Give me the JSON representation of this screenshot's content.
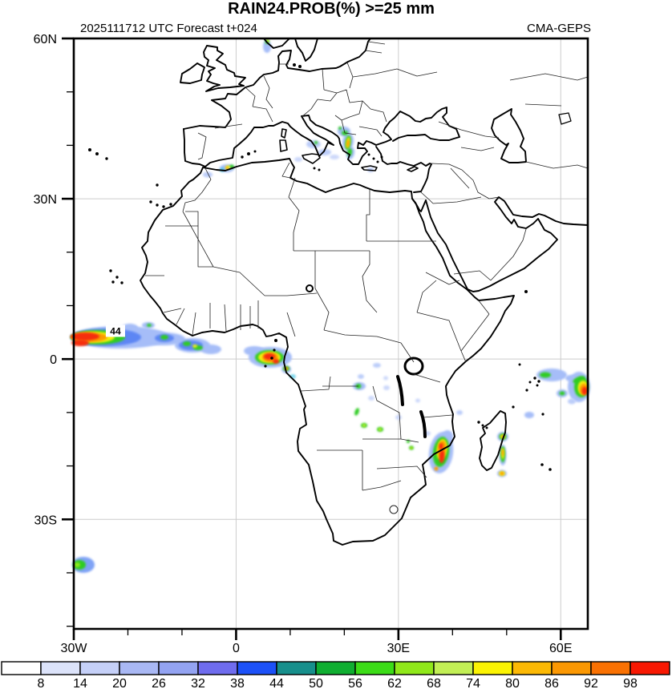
{
  "header": {
    "title": "RAIN24.PROB(%) >=25 mm",
    "subtitle_left": "2025111712 UTC Forecast t+024",
    "subtitle_right": "CMA-GEPS"
  },
  "chart_data": {
    "type": "heatmap",
    "title": "RAIN24.PROB(%) >=25 mm",
    "init_time": "2025111712 UTC",
    "forecast_step": "t+024",
    "model": "CMA-GEPS",
    "variable": "Probability of 24h rainfall >= 25 mm (%)",
    "projection": "lat-lon",
    "lon_range": [
      -30,
      65
    ],
    "lat_range": [
      -50.5,
      60
    ],
    "grid_on": true,
    "gridline_color": "#cccccc",
    "minor_tick_interval_deg": 10,
    "x_ticks": [
      {
        "label": "30W",
        "lon": -30
      },
      {
        "label": "0",
        "lon": 0
      },
      {
        "label": "30E",
        "lon": 30
      },
      {
        "label": "60E",
        "lon": 60
      }
    ],
    "y_ticks": [
      {
        "label": "60N",
        "lat": 60
      },
      {
        "label": "30N",
        "lat": 30
      },
      {
        "label": "0",
        "lat": 0
      },
      {
        "label": "30S",
        "lat": -30
      }
    ],
    "colorbar": {
      "levels": [
        8,
        14,
        20,
        26,
        32,
        38,
        44,
        50,
        56,
        62,
        68,
        74,
        80,
        86,
        92,
        98
      ],
      "colors": [
        "#ffffff",
        "#dce3fa",
        "#c5d0f8",
        "#a9b8f4",
        "#93a3f2",
        "#6f6cee",
        "#1c51f8",
        "#178f8c",
        "#10ae31",
        "#3cdc17",
        "#90e81a",
        "#c2ef55",
        "#fbf303",
        "#fcb905",
        "#fb9803",
        "#f97102",
        "#f81802"
      ],
      "position": "bottom"
    },
    "max_label": {
      "text": "44",
      "lon": -22.3,
      "lat": 5.2
    },
    "features": [
      {
        "name": "atlantic-equatorial-streak",
        "center_lonlat": [
          -27,
          4
        ],
        "peak": ">98",
        "layers": [
          [
            150,
            421,
            62,
            14,
            0,
            "#a6bdf8"
          ],
          [
            205,
            423,
            26,
            8,
            0,
            "#a6bdf8"
          ],
          [
            240,
            431,
            22,
            9,
            0,
            "#a6bdf8"
          ],
          [
            263,
            436,
            13,
            6,
            0,
            "#a6bdf8"
          ],
          [
            185,
            406,
            8,
            4,
            0,
            "#a6bdf8"
          ],
          [
            162,
            409,
            10,
            5,
            0,
            "#a6bdf8"
          ],
          [
            132,
            421,
            44,
            11,
            0,
            "#5d86f4"
          ],
          [
            238,
            431,
            15,
            6,
            0,
            "#5d86f4"
          ],
          [
            205,
            422,
            12,
            5,
            0,
            "#5d86f4"
          ],
          [
            122,
            421,
            34,
            9,
            0,
            "#2fcc24"
          ],
          [
            205,
            421,
            5,
            3,
            0,
            "#2fcc24"
          ],
          [
            233,
            429,
            5,
            3,
            0,
            "#2fcc24"
          ],
          [
            247,
            434,
            6,
            3,
            0,
            "#2fcc24"
          ],
          [
            186,
            406,
            3,
            2,
            0,
            "#2fcc24"
          ],
          [
            116,
            421,
            27,
            7,
            0,
            "#f4ef0b"
          ],
          [
            243,
            432,
            3,
            2,
            0,
            "#f4ef0b"
          ],
          [
            111,
            421,
            23,
            6,
            0,
            "#fc9b06"
          ],
          [
            106,
            420,
            18,
            5,
            0,
            "#f62d0c"
          ],
          [
            100,
            428,
            11,
            4,
            0,
            "#f62d0c"
          ]
        ]
      },
      {
        "name": "gulf-of-guinea-blob",
        "center_lonlat": [
          6.5,
          0.2
        ],
        "peak": ">98",
        "layers": [
          [
            337,
            446,
            27,
            13,
            0,
            "#a6bdf8"
          ],
          [
            317,
            438,
            13,
            6,
            0,
            "#a6bdf8"
          ],
          [
            357,
            461,
            6,
            5,
            0,
            "#a6bdf8"
          ],
          [
            365,
            470,
            4,
            3,
            0,
            "#7fd8ee"
          ],
          [
            336,
            446,
            18,
            9,
            0,
            "#2fcc24"
          ],
          [
            357,
            460,
            4,
            3,
            0,
            "#2fcc24"
          ],
          [
            336,
            446,
            14,
            7,
            0,
            "#f4ef0b"
          ],
          [
            337,
            446,
            10,
            6,
            0,
            "#fc9b06"
          ],
          [
            357,
            460,
            2.5,
            2,
            0,
            "#fc9b06"
          ],
          [
            336,
            445,
            7,
            4,
            0,
            "#f62d0c"
          ],
          [
            344,
            451,
            4,
            3,
            0,
            "#f62d0c"
          ]
        ]
      },
      {
        "name": "adriatic-coast-streak",
        "center_lonlat": [
          19.3,
          41.5
        ],
        "peak": "86",
        "layers": [
          [
            429,
            164,
            8,
            6,
            0,
            "#a6bdf8"
          ],
          [
            434,
            177,
            7,
            11,
            8,
            "#a6bdf8"
          ],
          [
            437,
            191,
            5,
            8,
            10,
            "#a6bdf8"
          ],
          [
            430,
            166,
            4,
            3,
            0,
            "#2fcc24"
          ],
          [
            434,
            178,
            3.5,
            9,
            8,
            "#2fcc24"
          ],
          [
            436,
            190,
            3,
            5,
            8,
            "#2fcc24"
          ],
          [
            424,
            160,
            2,
            2,
            0,
            "#2fcc24"
          ],
          [
            434,
            178,
            2.2,
            7,
            8,
            "#f4ef0b"
          ],
          [
            434,
            179,
            1.6,
            5,
            8,
            "#fc9b06"
          ]
        ]
      },
      {
        "name": "south-spain-specks",
        "center_lonlat": [
          -3,
          36.5
        ],
        "peak": "80",
        "layers": [
          [
            283,
            210,
            9,
            5,
            0,
            "#a6bdf8"
          ],
          [
            277,
            212,
            3,
            2.5,
            0,
            "#49c9e8"
          ],
          [
            289,
            208,
            3,
            2.5,
            0,
            "#2fcc24"
          ],
          [
            284,
            209,
            3,
            2.5,
            0,
            "#f4ef0b"
          ],
          [
            283,
            210,
            1.5,
            1.5,
            0,
            "#fc9b06"
          ]
        ]
      },
      {
        "name": "gibraltar-west-speck",
        "center_lonlat": [
          -6.5,
          34.5
        ],
        "peak": "14",
        "layers": [
          [
            259,
            218,
            6,
            3.5,
            0,
            "#bccdf9"
          ]
        ]
      },
      {
        "name": "norway-coast-speck",
        "center_lonlat": [
          5.8,
          59
        ],
        "peak": "62",
        "layers": [
          [
            333,
            58,
            5,
            8,
            0,
            "#a6bdf8"
          ],
          [
            333,
            52,
            2.5,
            3,
            0,
            "#2fcc24"
          ],
          [
            334,
            51,
            1.4,
            1.6,
            0,
            "#f4ef0b"
          ]
        ]
      },
      {
        "name": "tyrrhenian-sicily-specks",
        "center_lonlat": [
          14.5,
          39
        ],
        "peak": "56",
        "layers": [
          [
            391,
            180,
            9,
            5,
            0,
            "#bccdf9"
          ],
          [
            394,
            178,
            2,
            2,
            0,
            "#2fcc24"
          ],
          [
            405,
            190,
            8,
            4,
            0,
            "#bccdf9"
          ],
          [
            417,
            196,
            6,
            3,
            0,
            "#ccd8fa"
          ],
          [
            372,
            199,
            5,
            3,
            0,
            "#ccd8fa"
          ],
          [
            462,
            212,
            4,
            3,
            0,
            "#bccdf9"
          ]
        ]
      },
      {
        "name": "central-africa-specks",
        "center_lonlat": [
          23,
          -6
        ],
        "peak": "62",
        "layers": [
          [
            470,
            456,
            5,
            3,
            0,
            "#bccdf9"
          ],
          [
            450,
            470,
            4,
            3,
            0,
            "#bccdf9"
          ],
          [
            448,
            482,
            8,
            5,
            0,
            "#a6bdf8"
          ],
          [
            447,
            482,
            3.5,
            3,
            0,
            "#2fcc24"
          ],
          [
            482,
            484,
            4,
            3,
            0,
            "#ccd8fa"
          ],
          [
            463,
            497,
            4,
            3,
            0,
            "#ccd8fa"
          ],
          [
            497,
            521,
            4,
            3,
            0,
            "#ccd8fa"
          ],
          [
            481,
            472,
            3,
            2.5,
            0,
            "#ccd8fa"
          ],
          [
            445,
            514,
            2.5,
            5,
            20,
            "#2fcc24"
          ],
          [
            454,
            531,
            4,
            3,
            0,
            "#2fcc24"
          ],
          [
            454,
            531,
            2,
            2,
            0,
            "#c8ef30"
          ],
          [
            474,
            536,
            4,
            3,
            0,
            "#2fcc24"
          ],
          [
            474,
            536,
            2,
            2,
            0,
            "#c8ef30"
          ],
          [
            521,
            500,
            3,
            2.5,
            0,
            "#ccd8fa"
          ],
          [
            573,
            515,
            4,
            3,
            0,
            "#bccdf9"
          ],
          [
            533,
            541,
            4,
            3,
            0,
            "#ccd8fa"
          ]
        ]
      },
      {
        "name": "mozambique-coast-blob",
        "center_lonlat": [
          38,
          -17.5
        ],
        "peak": ">98",
        "layers": [
          [
            550,
            565,
            15,
            26,
            8,
            "#a6bdf8"
          ],
          [
            558,
            545,
            7,
            8,
            0,
            "#a6bdf8"
          ],
          [
            550,
            564,
            10,
            19,
            8,
            "#2fcc24"
          ],
          [
            551,
            561,
            6.5,
            13,
            8,
            "#f4ef0b"
          ],
          [
            551,
            560,
            5,
            10,
            8,
            "#fc9b06"
          ],
          [
            551,
            570,
            3.5,
            8,
            5,
            "#f62d0c"
          ],
          [
            550,
            557,
            2.5,
            4,
            0,
            "#f62d0c"
          ],
          [
            544,
            585,
            2.5,
            2.5,
            0,
            "#fc9b06"
          ],
          [
            513,
            559,
            3,
            2.5,
            0,
            "#2fcc24"
          ],
          [
            513,
            559,
            1.5,
            1.3,
            0,
            "#f4ef0b"
          ],
          [
            509,
            551,
            2,
            2,
            0,
            "#2fcc24"
          ]
        ]
      },
      {
        "name": "madagascar-east-specks",
        "center_lonlat": [
          49.3,
          -18
        ],
        "peak": "92",
        "layers": [
          [
            627,
            545,
            7,
            6,
            0,
            "#a6bdf8"
          ],
          [
            627,
            545,
            4.5,
            4,
            0,
            "#2fcc24"
          ],
          [
            627,
            545,
            3,
            2.5,
            0,
            "#f4ef0b"
          ],
          [
            627,
            545,
            1.7,
            1.5,
            0,
            "#fc9b06"
          ],
          [
            627,
            568,
            4.5,
            13,
            0,
            "#a6bdf8"
          ],
          [
            627,
            567,
            3,
            10,
            0,
            "#2fcc24"
          ],
          [
            627,
            566,
            1.8,
            7,
            0,
            "#f4ef0b"
          ],
          [
            627,
            565,
            1.2,
            4.5,
            0,
            "#fc9b06"
          ],
          [
            626,
            591,
            6,
            4.5,
            0,
            "#a6bdf8"
          ],
          [
            626,
            591,
            4,
            3,
            0,
            "#f4ef0b"
          ],
          [
            626,
            591,
            2.3,
            2,
            0,
            "#fc9b06"
          ]
        ]
      },
      {
        "name": "indian-ocean-edge-blobs",
        "center_lonlat": [
          63,
          -5.5
        ],
        "peak": ">98",
        "layers": [
          [
            688,
            468,
            19,
            8,
            0,
            "#a6bdf8"
          ],
          [
            680,
            468,
            7,
            3.5,
            0,
            "#2fcc24"
          ],
          [
            712,
            472,
            7,
            4,
            0,
            "#a6bdf8"
          ],
          [
            722,
            483,
            14,
            19,
            0,
            "#a6bdf8"
          ],
          [
            725,
            483,
            9,
            13,
            0,
            "#2fcc24"
          ],
          [
            722,
            474,
            8,
            3.5,
            -20,
            "#2fcc24"
          ],
          [
            727,
            484,
            6.5,
            9,
            0,
            "#f4ef0b"
          ],
          [
            728,
            486,
            5,
            7,
            0,
            "#fc9b06"
          ],
          [
            729,
            488,
            3.5,
            5,
            0,
            "#f62d0c"
          ],
          [
            701,
            491,
            7,
            5,
            0,
            "#a6bdf8"
          ],
          [
            701,
            491,
            3.5,
            2.5,
            0,
            "#2fcc24"
          ],
          [
            713,
            501,
            5,
            3.5,
            0,
            "#bccdf9"
          ],
          [
            660,
            518,
            6,
            4,
            0,
            "#a6bdf8"
          ]
        ]
      },
      {
        "name": "south-atlantic-corner-blob",
        "center_lonlat": [
          -28.5,
          -38.5
        ],
        "peak": "68",
        "layers": [
          [
            104,
            705,
            14,
            10,
            0,
            "#7fa3f6"
          ],
          [
            99,
            705,
            8,
            6,
            0,
            "#2fcc24"
          ],
          [
            96,
            705,
            4,
            3,
            0,
            "#8de81a"
          ]
        ]
      }
    ]
  }
}
